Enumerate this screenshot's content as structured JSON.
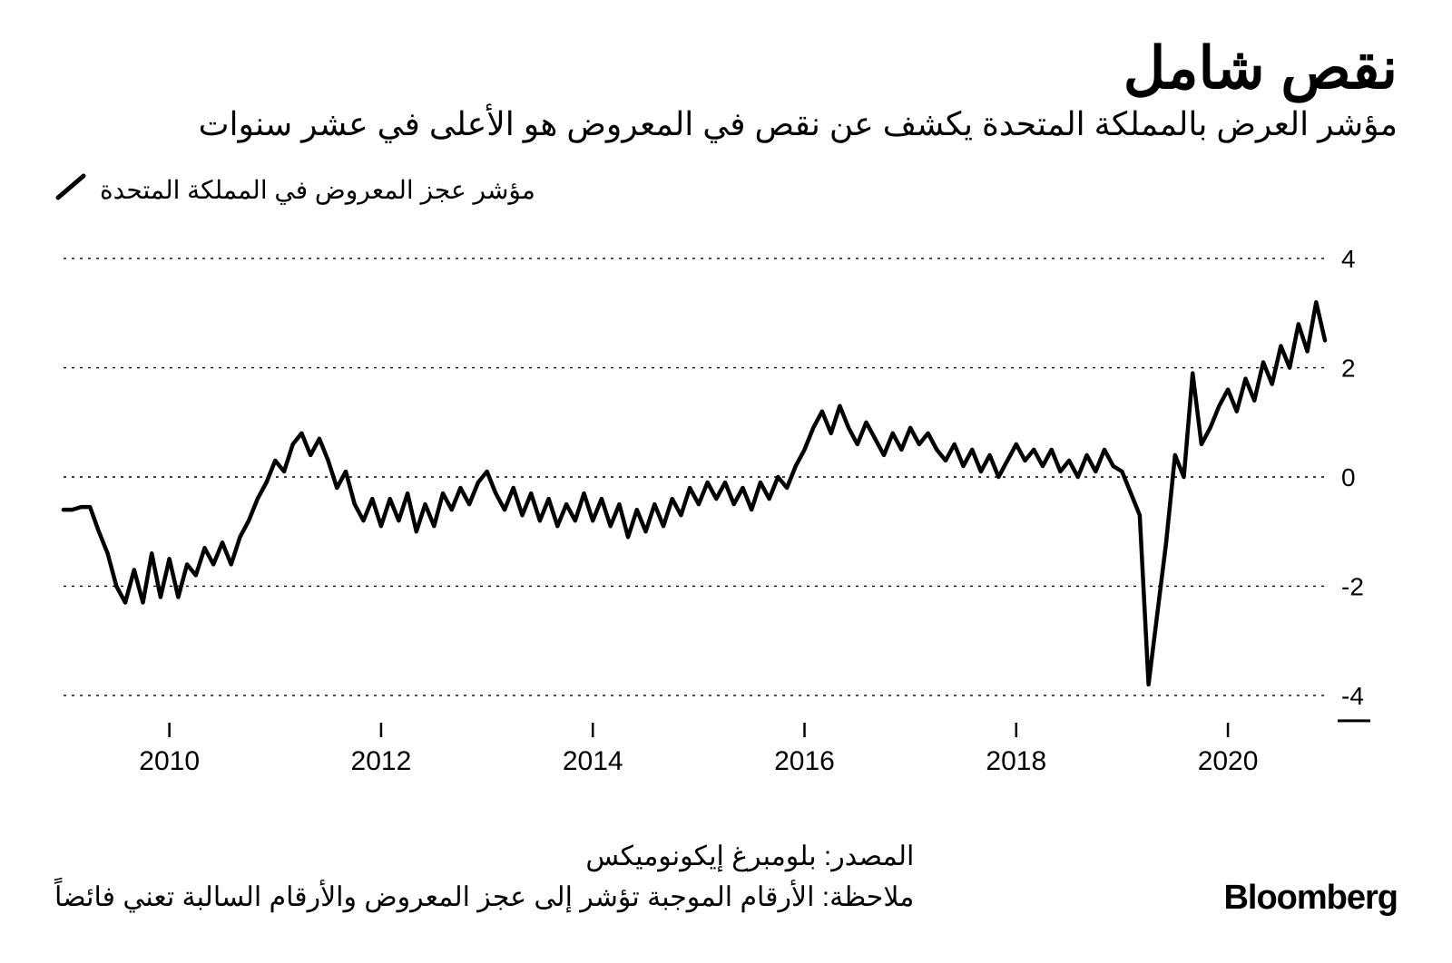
{
  "header": {
    "title": "نقص شامل",
    "subtitle": "مؤشر العرض بالمملكة المتحدة يكشف عن نقص في المعروض هو الأعلى في عشر سنوات"
  },
  "legend": {
    "label": "مؤشر عجز المعروض في المملكة المتحدة",
    "stroke": "#000000",
    "stroke_width": 4
  },
  "chart": {
    "type": "line",
    "background_color": "#ffffff",
    "grid_color": "#000000",
    "grid_dash": "3,6",
    "line_color": "#000000",
    "line_width": 4.5,
    "ylim": [
      -4.4,
      4.4
    ],
    "yticks": [
      -4,
      -2,
      0,
      2,
      4
    ],
    "ytick_labels": [
      "-4",
      "-2",
      "0",
      "2",
      "4"
    ],
    "ytick_fontsize": 28,
    "x_start_year": 2009,
    "x_end_year": 2022,
    "xticks_years": [
      2010,
      2012,
      2014,
      2016,
      2018,
      2020
    ],
    "xtick_labels": [
      "2010",
      "2012",
      "2014",
      "2016",
      "2018",
      "2020"
    ],
    "xtick_fontsize": 30,
    "samples_per_year": 12,
    "values": [
      -0.6,
      -0.6,
      -0.55,
      -0.55,
      -1.0,
      -1.4,
      -2.0,
      -2.3,
      -1.7,
      -2.3,
      -1.4,
      -2.2,
      -1.5,
      -2.2,
      -1.6,
      -1.8,
      -1.3,
      -1.6,
      -1.2,
      -1.6,
      -1.1,
      -0.8,
      -0.4,
      -0.1,
      0.3,
      0.1,
      0.6,
      0.8,
      0.4,
      0.7,
      0.3,
      -0.2,
      0.1,
      -0.5,
      -0.8,
      -0.4,
      -0.9,
      -0.4,
      -0.8,
      -0.3,
      -1.0,
      -0.5,
      -0.9,
      -0.3,
      -0.6,
      -0.2,
      -0.5,
      -0.1,
      0.1,
      -0.3,
      -0.6,
      -0.2,
      -0.7,
      -0.3,
      -0.8,
      -0.4,
      -0.9,
      -0.5,
      -0.8,
      -0.3,
      -0.8,
      -0.4,
      -0.9,
      -0.5,
      -1.1,
      -0.6,
      -1.0,
      -0.5,
      -0.9,
      -0.4,
      -0.7,
      -0.2,
      -0.5,
      -0.1,
      -0.4,
      -0.1,
      -0.5,
      -0.2,
      -0.6,
      -0.1,
      -0.4,
      0.0,
      -0.2,
      0.2,
      0.5,
      0.9,
      1.2,
      0.8,
      1.3,
      0.9,
      0.6,
      1.0,
      0.7,
      0.4,
      0.8,
      0.5,
      0.9,
      0.6,
      0.8,
      0.5,
      0.3,
      0.6,
      0.2,
      0.5,
      0.1,
      0.4,
      0.0,
      0.3,
      0.6,
      0.3,
      0.5,
      0.2,
      0.5,
      0.1,
      0.3,
      0.0,
      0.4,
      0.1,
      0.5,
      0.2,
      0.1,
      -0.3,
      -0.7,
      -3.8,
      -2.5,
      -1.2,
      0.4,
      0.0,
      1.9,
      0.6,
      0.9,
      1.3,
      1.6,
      1.2,
      1.8,
      1.4,
      2.1,
      1.7,
      2.4,
      2.0,
      2.8,
      2.3,
      3.2,
      2.5
    ]
  },
  "footer": {
    "source": "المصدر: بلومبرغ إيكونوميكس",
    "note": "ملاحظة: الأرقام الموجبة تؤشر إلى عجز المعروض والأرقام السالبة تعني فائضاً",
    "brand": "Bloomberg"
  }
}
